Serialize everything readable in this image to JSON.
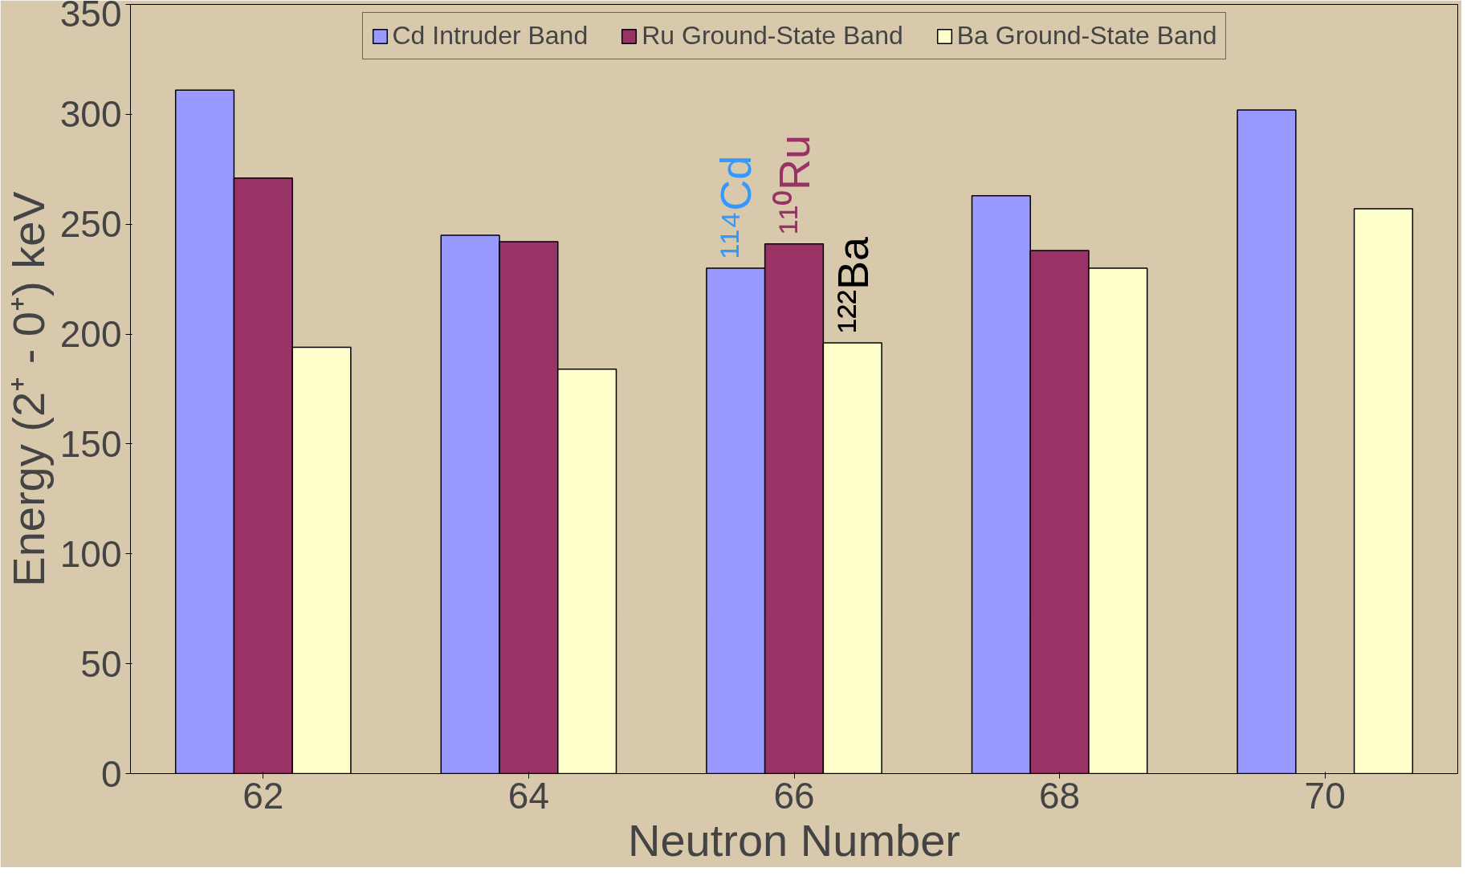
{
  "chart_data": {
    "type": "bar",
    "xlabel": "Neutron Number",
    "ylabel": "Energy (2⁺ - 0⁺) keV",
    "categories": [
      "62",
      "64",
      "66",
      "68",
      "70"
    ],
    "series": [
      {
        "name": "Cd Intruder Band",
        "color": "#9999ff",
        "values": [
          311,
          245,
          230,
          263,
          302
        ]
      },
      {
        "name": "Ru Ground-State Band",
        "color": "#993366",
        "values": [
          271,
          242,
          241,
          238,
          null
        ]
      },
      {
        "name": "Ba Ground-State Band",
        "color": "#ffffcc",
        "values": [
          194,
          184,
          196,
          230,
          257
        ]
      }
    ],
    "ylim": [
      0,
      350
    ],
    "yticks": [
      0,
      50,
      100,
      150,
      200,
      250,
      300,
      350
    ],
    "grid": false,
    "legend": "top",
    "annotations": [
      "¹¹⁴Cd",
      "¹¹⁰Ru",
      "¹²²Ba"
    ]
  }
}
